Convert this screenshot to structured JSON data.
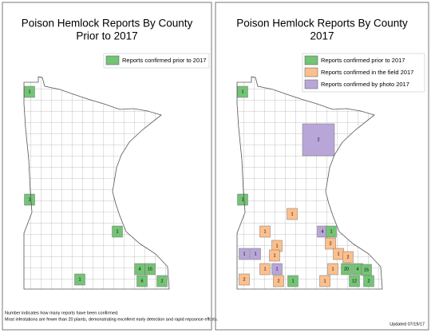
{
  "panels": [
    {
      "title": "Poison Hemlock Reports By County",
      "subtitle": "Prior to 2017",
      "legend": [
        {
          "label": "Reports confirmed prior to 2017",
          "color": "#74c476"
        }
      ],
      "counties": [
        {
          "label": "1",
          "category": 0
        },
        {
          "label": "1",
          "category": 0
        },
        {
          "label": "1",
          "category": 0
        },
        {
          "label": "1",
          "category": 0
        },
        {
          "label": "4",
          "category": 0
        },
        {
          "label": "15",
          "category": 0
        },
        {
          "label": "6",
          "category": 0
        },
        {
          "label": "2",
          "category": 0
        }
      ]
    },
    {
      "title": "Poison Hemlock Reports By County",
      "subtitle": "2017",
      "legend": [
        {
          "label": "Reports confirmed prior to 2017",
          "color": "#74c476"
        },
        {
          "label": "Reports confirmed in the field 2017",
          "color": "#fdbf8c"
        },
        {
          "label": "Reports confirmed by photo 2017",
          "color": "#b9a6d8"
        }
      ],
      "counties": [
        {
          "label": "1",
          "category": 0
        },
        {
          "label": "2",
          "category": 2
        },
        {
          "label": "1",
          "category": 0
        },
        {
          "label": "1",
          "category": 1
        },
        {
          "label": "1",
          "category": 1
        },
        {
          "label": "4",
          "category": 2
        },
        {
          "label": "1",
          "category": 0
        },
        {
          "label": "1",
          "category": 1
        },
        {
          "label": "2",
          "category": 1
        },
        {
          "label": "1",
          "category": 2
        },
        {
          "label": "1",
          "category": 2
        },
        {
          "label": "1",
          "category": 1
        },
        {
          "label": "1",
          "category": 1
        },
        {
          "label": "2",
          "category": 1
        },
        {
          "label": "1",
          "category": 1
        },
        {
          "label": "1",
          "category": 1
        },
        {
          "label": "1",
          "category": 2
        },
        {
          "label": "20",
          "category": 0
        },
        {
          "label": "4",
          "category": 0
        },
        {
          "label": "15",
          "category": 0
        },
        {
          "label": "2",
          "category": 1
        },
        {
          "label": "2",
          "category": 1
        },
        {
          "label": "1",
          "category": 0
        },
        {
          "label": "1",
          "category": 1
        },
        {
          "label": "12",
          "category": 0
        },
        {
          "label": "2",
          "category": 0
        }
      ]
    }
  ],
  "footnote": [
    "Number indicates how many reports have been confirmed.",
    "Most infestations are fewer than 20 plants, demonstrating excellent early detection and rapid repsonse efforts."
  ],
  "updated": "Updated 07/19/17"
}
